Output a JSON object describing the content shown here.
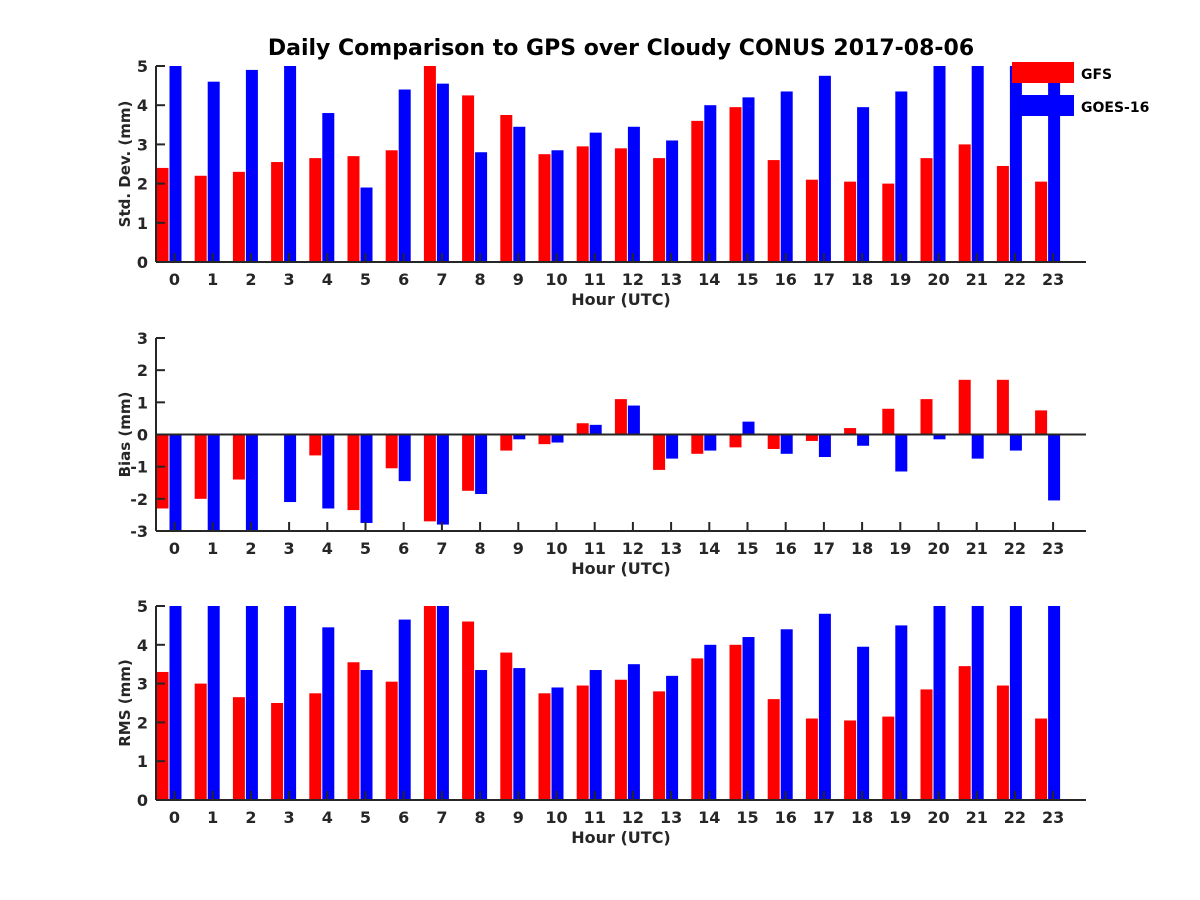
{
  "title": "Daily Comparison to GPS over Cloudy CONUS 2017-08-06",
  "legend": {
    "position": "top-right",
    "entries": [
      {
        "label": "GFS",
        "color": "#ff0000"
      },
      {
        "label": "GOES-16",
        "color": "#0000ff"
      }
    ]
  },
  "chart_data": [
    {
      "type": "bar",
      "xlabel": "Hour (UTC)",
      "ylabel": "Std. Dev. (mm)",
      "ylim": [
        0,
        5
      ],
      "yticks": [
        "0",
        "1",
        "2",
        "3",
        "4",
        "5"
      ],
      "categories": [
        "0",
        "1",
        "2",
        "3",
        "4",
        "5",
        "6",
        "7",
        "8",
        "9",
        "10",
        "11",
        "12",
        "13",
        "14",
        "15",
        "16",
        "17",
        "18",
        "19",
        "20",
        "21",
        "22",
        "23"
      ],
      "series": [
        {
          "name": "GFS",
          "color": "#ff0000",
          "values": [
            2.4,
            2.2,
            2.3,
            2.55,
            2.65,
            2.7,
            2.85,
            5.0,
            4.25,
            3.75,
            2.75,
            2.95,
            2.9,
            2.65,
            3.6,
            3.95,
            2.6,
            2.1,
            2.05,
            2.0,
            2.65,
            3.0,
            2.45,
            2.05
          ]
        },
        {
          "name": "GOES-16",
          "color": "#0000ff",
          "values": [
            5.0,
            4.6,
            4.9,
            5.0,
            3.8,
            1.9,
            4.4,
            4.55,
            2.8,
            3.45,
            2.85,
            3.3,
            3.45,
            3.1,
            4.0,
            4.2,
            4.35,
            4.75,
            3.95,
            4.35,
            5.0,
            5.0,
            5.0,
            5.0
          ]
        }
      ]
    },
    {
      "type": "bar",
      "xlabel": "Hour (UTC)",
      "ylabel": "Bias (mm)",
      "ylim": [
        -3,
        3
      ],
      "yticks": [
        "-3",
        "-2",
        "-1",
        "0",
        "1",
        "2",
        "3"
      ],
      "categories": [
        "0",
        "1",
        "2",
        "3",
        "4",
        "5",
        "6",
        "7",
        "8",
        "9",
        "10",
        "11",
        "12",
        "13",
        "14",
        "15",
        "16",
        "17",
        "18",
        "19",
        "20",
        "21",
        "22",
        "23"
      ],
      "series": [
        {
          "name": "GFS",
          "color": "#ff0000",
          "values": [
            -2.3,
            -2.0,
            -1.4,
            0.0,
            -0.65,
            -2.35,
            -1.05,
            -2.7,
            -1.75,
            -0.5,
            -0.3,
            0.35,
            1.1,
            -1.1,
            -0.6,
            -0.4,
            -0.45,
            -0.2,
            0.2,
            0.8,
            1.1,
            1.7,
            1.7,
            0.75
          ]
        },
        {
          "name": "GOES-16",
          "color": "#0000ff",
          "values": [
            -3.0,
            -3.0,
            -3.0,
            -2.1,
            -2.3,
            -2.75,
            -1.45,
            -2.8,
            -1.85,
            -0.15,
            -0.25,
            0.3,
            0.9,
            -0.75,
            -0.5,
            0.4,
            -0.6,
            -0.7,
            -0.35,
            -1.15,
            -0.15,
            -0.75,
            -0.5,
            -2.05
          ]
        }
      ]
    },
    {
      "type": "bar",
      "xlabel": "Hour (UTC)",
      "ylabel": "RMS (mm)",
      "ylim": [
        0,
        5
      ],
      "yticks": [
        "0",
        "1",
        "2",
        "3",
        "4",
        "5"
      ],
      "categories": [
        "0",
        "1",
        "2",
        "3",
        "4",
        "5",
        "6",
        "7",
        "8",
        "9",
        "10",
        "11",
        "12",
        "13",
        "14",
        "15",
        "16",
        "17",
        "18",
        "19",
        "20",
        "21",
        "22",
        "23"
      ],
      "series": [
        {
          "name": "GFS",
          "color": "#ff0000",
          "values": [
            3.3,
            3.0,
            2.65,
            2.5,
            2.75,
            3.55,
            3.05,
            5.0,
            4.6,
            3.8,
            2.75,
            2.95,
            3.1,
            2.8,
            3.65,
            4.0,
            2.6,
            2.1,
            2.05,
            2.15,
            2.85,
            3.45,
            2.95,
            2.1
          ]
        },
        {
          "name": "GOES-16",
          "color": "#0000ff",
          "values": [
            5.0,
            5.0,
            5.0,
            5.0,
            4.45,
            3.35,
            4.65,
            5.0,
            3.35,
            3.4,
            2.9,
            3.35,
            3.5,
            3.2,
            4.0,
            4.2,
            4.4,
            4.8,
            3.95,
            4.5,
            5.0,
            5.0,
            5.0,
            5.0
          ]
        }
      ]
    }
  ]
}
